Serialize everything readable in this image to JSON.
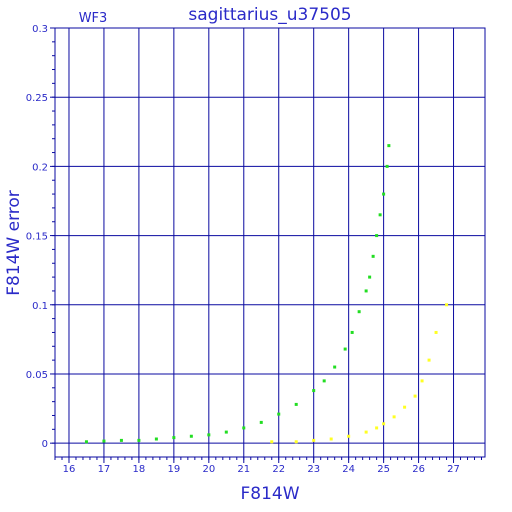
{
  "chart_data": {
    "type": "scatter",
    "title": "sagittarius_u37505",
    "panel_label": "WF3",
    "xlabel": "F814W",
    "ylabel": "F814W error",
    "xlim": [
      15.6,
      27.9
    ],
    "ylim": [
      -0.01,
      0.3
    ],
    "xticks": [
      16,
      17,
      18,
      19,
      20,
      21,
      22,
      23,
      24,
      25,
      26,
      27
    ],
    "yticks": [
      0,
      0.05,
      0.1,
      0.15,
      0.2,
      0.25,
      0.3
    ],
    "ytick_labels": [
      "0",
      "0.05",
      "0.1",
      "0.15",
      "0.2",
      "0.25",
      "0.3"
    ],
    "grid": true,
    "colors": {
      "axis": "#2a2ac8",
      "grid": "#0a0aa0"
    },
    "series": [
      {
        "color": "#22dd22",
        "x": [
          16.5,
          17.0,
          17.5,
          18.0,
          18.5,
          19.0,
          19.5,
          20.0,
          20.5,
          21.0,
          21.5,
          22.0,
          22.5,
          23.0,
          23.3,
          23.6,
          23.9,
          24.1,
          24.3,
          24.5,
          24.6,
          24.7,
          24.8,
          24.9,
          25.0,
          25.1,
          25.15
        ],
        "y": [
          0.001,
          0.0015,
          0.002,
          0.002,
          0.003,
          0.004,
          0.005,
          0.006,
          0.008,
          0.011,
          0.015,
          0.021,
          0.028,
          0.038,
          0.045,
          0.055,
          0.068,
          0.08,
          0.095,
          0.11,
          0.12,
          0.135,
          0.15,
          0.165,
          0.18,
          0.2,
          0.215
        ]
      },
      {
        "color": "#ffff22",
        "x": [
          21.8,
          22.5,
          23.0,
          23.5,
          24.0,
          24.5,
          24.8,
          25.0,
          25.3,
          25.6,
          25.9,
          26.1,
          26.3,
          26.5,
          26.8
        ],
        "y": [
          0.001,
          0.001,
          0.002,
          0.003,
          0.005,
          0.008,
          0.011,
          0.014,
          0.019,
          0.026,
          0.034,
          0.045,
          0.06,
          0.08,
          0.1
        ]
      }
    ]
  }
}
